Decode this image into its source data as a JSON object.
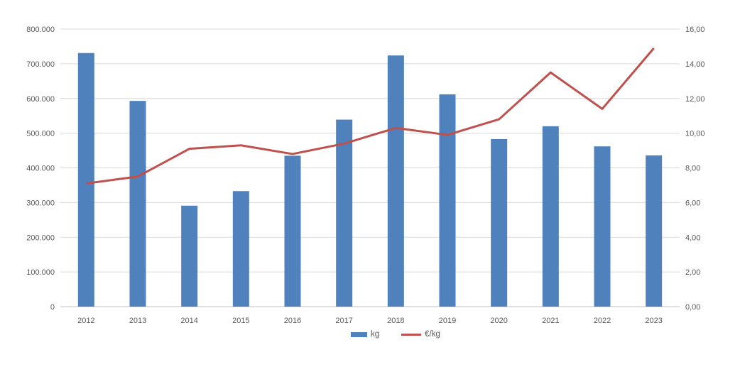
{
  "chart_data": {
    "type": "combo",
    "title": "",
    "categories": [
      "2012",
      "2013",
      "2014",
      "2015",
      "2016",
      "2017",
      "2018",
      "2019",
      "2020",
      "2021",
      "2022",
      "2023"
    ],
    "series": [
      {
        "name": "kg",
        "type": "bar",
        "axis": "left",
        "color": "#4f81bd",
        "values": [
          731000,
          593000,
          291000,
          333000,
          435000,
          539000,
          724000,
          612000,
          483000,
          520000,
          462000,
          436000
        ]
      },
      {
        "name": "€/kg",
        "type": "line",
        "axis": "right",
        "color": "#c0504d",
        "values": [
          7.1,
          7.5,
          9.1,
          9.3,
          8.8,
          9.4,
          10.3,
          9.9,
          10.8,
          13.5,
          11.4,
          14.9
        ]
      }
    ],
    "left_axis": {
      "min": 0,
      "max": 800000,
      "step": 100000,
      "tick_labels": [
        "0",
        "100.000",
        "200.000",
        "300.000",
        "400.000",
        "500.000",
        "600.000",
        "700.000",
        "800.000"
      ]
    },
    "right_axis": {
      "min": 0,
      "max": 16,
      "step": 2,
      "tick_labels": [
        "0,00",
        "2,00",
        "4,00",
        "6,00",
        "8,00",
        "10,00",
        "12,00",
        "14,00",
        "16,00"
      ]
    },
    "legend": {
      "position": "bottom",
      "entries": [
        "kg",
        "€/kg"
      ]
    },
    "grid": true,
    "colors": {
      "gridline": "#d9d9d9",
      "axis_line": "#bfbfbf",
      "tick_text": "#595959"
    }
  }
}
